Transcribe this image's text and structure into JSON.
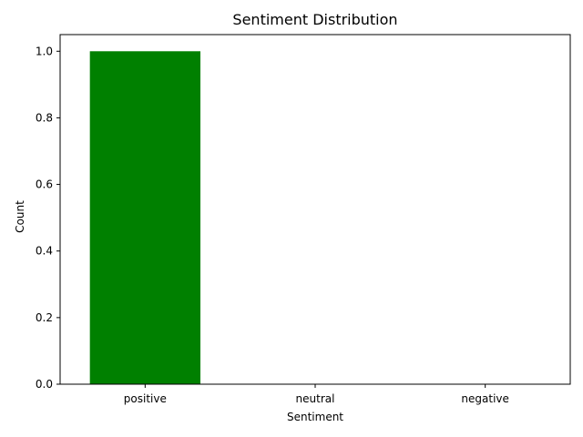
{
  "chart_data": {
    "type": "bar",
    "title": "Sentiment Distribution",
    "xlabel": "Sentiment",
    "ylabel": "Count",
    "categories": [
      "positive",
      "neutral",
      "negative"
    ],
    "values": [
      1,
      0,
      0
    ],
    "colors": [
      "#008000",
      "#808080",
      "#ff0000"
    ],
    "ylim": [
      0,
      1.05
    ],
    "yticks": [
      0.0,
      0.2,
      0.4,
      0.6,
      0.8,
      1.0
    ],
    "ytick_labels": [
      "0.0",
      "0.2",
      "0.4",
      "0.6",
      "0.8",
      "1.0"
    ],
    "grid": false,
    "legend": false
  }
}
